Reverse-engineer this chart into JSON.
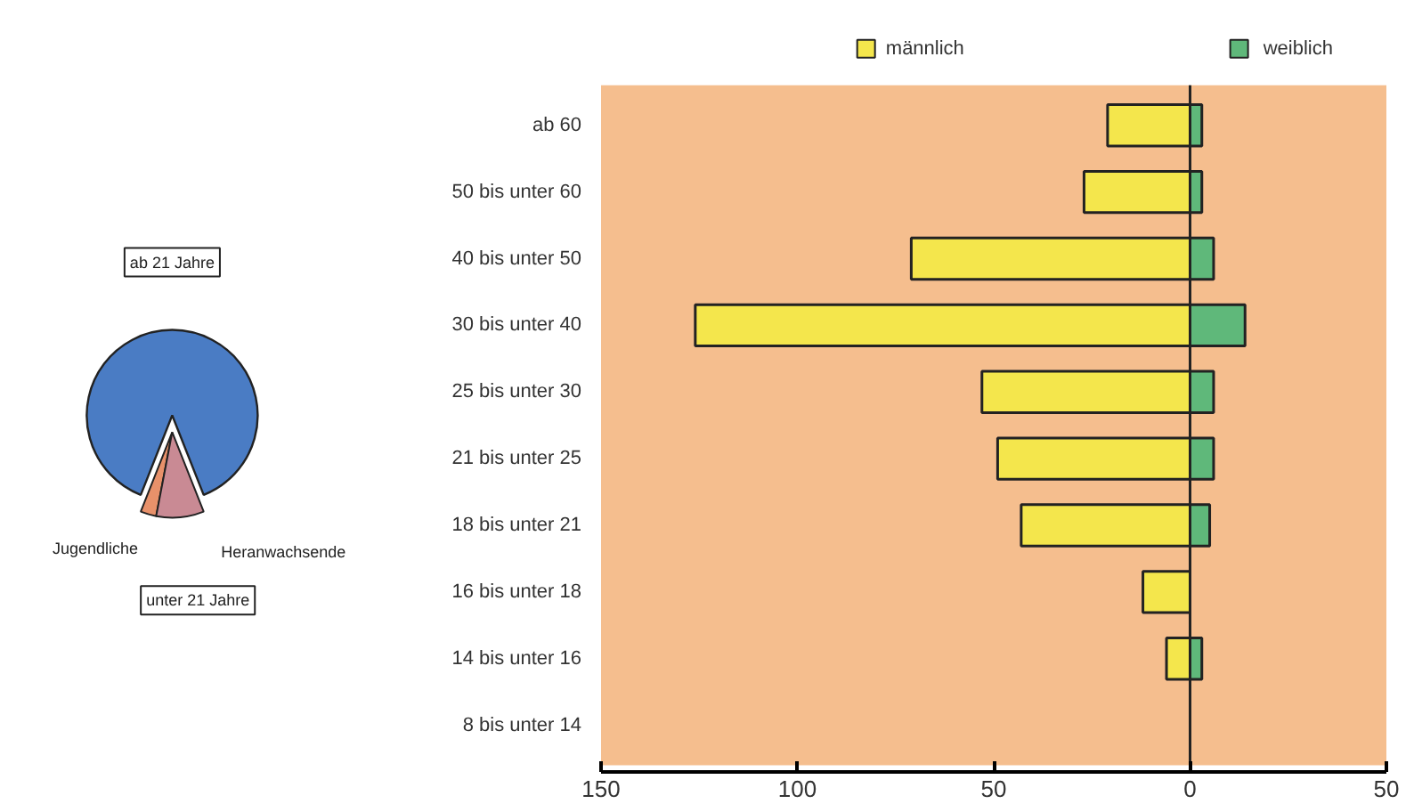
{
  "chart_data": [
    {
      "type": "pie",
      "categories": [
        "ab 21 Jahre",
        "Jugendliche",
        "Heranwachsende"
      ],
      "values": [
        88,
        3,
        9
      ],
      "colors": [
        "#4a7cc4",
        "#e8916a",
        "#c98a94"
      ],
      "annotations": [
        "unter 21 Jahre"
      ]
    },
    {
      "type": "bar",
      "orientation": "horizontal",
      "stacked": true,
      "categories": [
        "ab 60",
        "50 bis unter 60",
        "40 bis unter 50",
        "30 bis unter 40",
        "25 bis unter 30",
        "21 bis unter 25",
        "18 bis unter 21",
        "16 bis unter 18",
        "14 bis unter 16",
        "8 bis unter 14"
      ],
      "series": [
        {
          "name": "männlich",
          "color": "#f4e64c",
          "values": [
            -21,
            -27,
            -71,
            -126,
            -53,
            -49,
            -43,
            -12,
            -6,
            null
          ]
        },
        {
          "name": "weiblich",
          "color": "#5fb87a",
          "values": [
            3,
            3,
            6,
            14,
            6,
            6,
            5,
            null,
            3,
            null
          ]
        }
      ],
      "xlim": [
        -150,
        50
      ],
      "xticks": [
        {
          "value": -150,
          "label": "150"
        },
        {
          "value": -100,
          "label": "100"
        },
        {
          "value": -50,
          "label": "50"
        },
        0,
        50
      ],
      "ref_lines": [
        {
          "axis": "x",
          "value": 0
        }
      ],
      "legend": "top"
    }
  ]
}
